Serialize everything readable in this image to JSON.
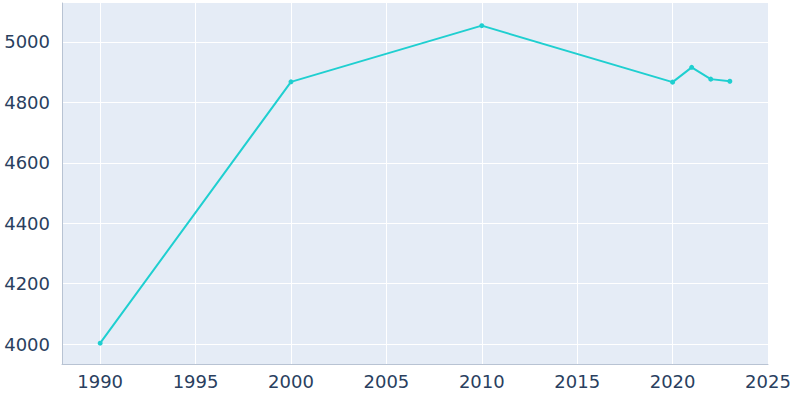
{
  "chart_data": {
    "type": "line",
    "x": [
      1990,
      2000,
      2010,
      2020,
      2021,
      2022,
      2023
    ],
    "values": [
      4003,
      4868,
      5054,
      4867,
      4916,
      4877,
      4870
    ],
    "color": "#1fcfd0",
    "marker": "circle",
    "xlim": [
      1988,
      2025
    ],
    "xticks": [
      1990,
      1995,
      2000,
      2005,
      2010,
      2015,
      2020,
      2025
    ],
    "ylim": [
      3934,
      5129
    ],
    "yticks": [
      4000,
      4200,
      4400,
      4600,
      4800,
      5000
    ],
    "grid": true
  }
}
